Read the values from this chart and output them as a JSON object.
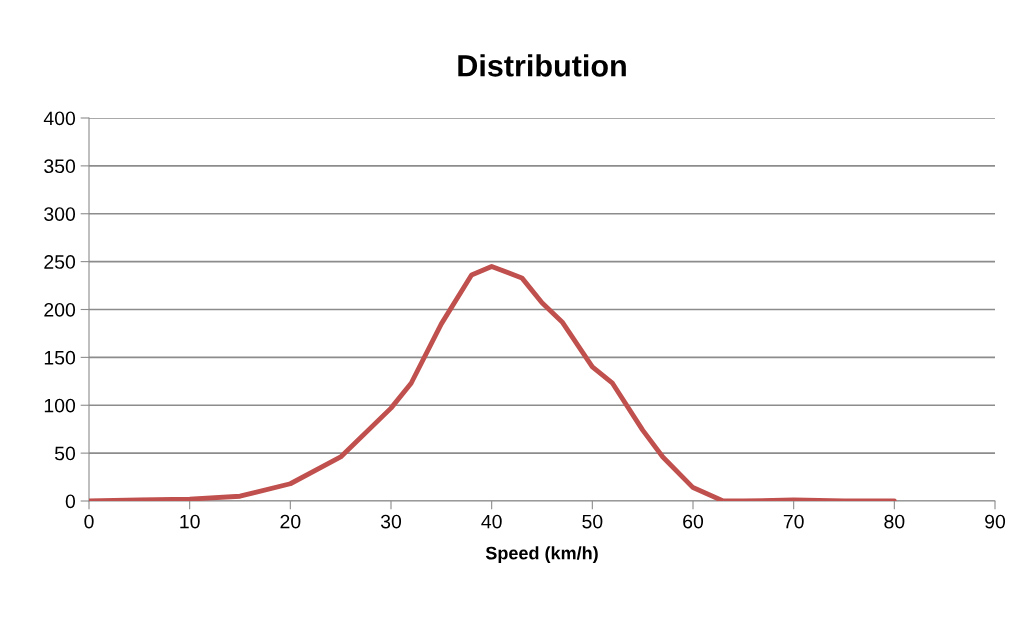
{
  "chart_data": {
    "type": "line",
    "title": "Distribution",
    "xlabel": "Speed (km/h)",
    "x": [
      0,
      5,
      10,
      15,
      20,
      25,
      30,
      32,
      35,
      38,
      40,
      43,
      45,
      47,
      50,
      52,
      55,
      57,
      60,
      63,
      65,
      70,
      75,
      80
    ],
    "series": [
      {
        "color": "#c0504d",
        "values": [
          0,
          1,
          2,
          5,
          18,
          46,
          97,
          123,
          185,
          236,
          245,
          233,
          207,
          187,
          140,
          123,
          74,
          46,
          14,
          0,
          0,
          1,
          0,
          0
        ]
      }
    ],
    "xlim": [
      0,
      90
    ],
    "xticks": [
      0,
      10,
      20,
      30,
      40,
      50,
      60,
      70,
      80,
      90
    ],
    "ylim": [
      0,
      400
    ],
    "yticks": [
      0,
      50,
      100,
      150,
      200,
      250,
      300,
      350,
      400
    ],
    "grid": "y",
    "legend": false,
    "marker": "none",
    "line_style": "solid"
  }
}
